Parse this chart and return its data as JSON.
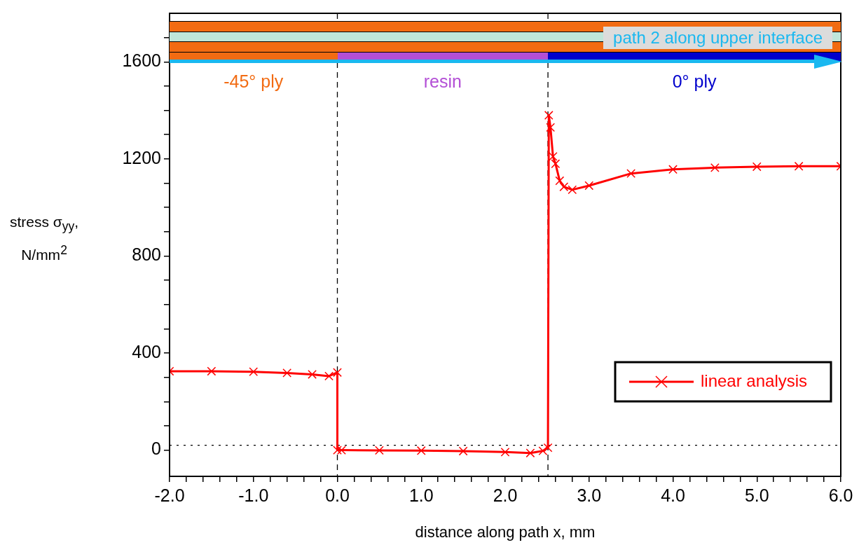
{
  "chart_data": {
    "type": "line",
    "xlabel": "distance along path x, mm",
    "ylabel": "stress σ$_{yy}$, N/mm$^{2}$",
    "xlim": [
      -2,
      6
    ],
    "ylim": [
      -108,
      1800
    ],
    "xticks": [
      {
        "value": -2,
        "label": "-2.0"
      },
      {
        "value": -1.8,
        "label": null
      },
      {
        "value": -1.6,
        "label": null
      },
      {
        "value": -1.4,
        "label": null
      },
      {
        "value": -1.2,
        "label": null
      },
      {
        "value": -1,
        "label": "-1.0"
      },
      {
        "value": -0.8,
        "label": null
      },
      {
        "value": -0.6,
        "label": null
      },
      {
        "value": -0.4,
        "label": null
      },
      {
        "value": -0.2,
        "label": null
      },
      {
        "value": 0,
        "label": "0.0"
      },
      {
        "value": 0.2,
        "label": null
      },
      {
        "value": 0.4,
        "label": null
      },
      {
        "value": 0.6,
        "label": null
      },
      {
        "value": 0.8,
        "label": null
      },
      {
        "value": 1,
        "label": "1.0"
      },
      {
        "value": 1.2,
        "label": null
      },
      {
        "value": 1.4,
        "label": null
      },
      {
        "value": 1.6,
        "label": null
      },
      {
        "value": 1.8,
        "label": null
      },
      {
        "value": 2,
        "label": "2.0"
      },
      {
        "value": 2.2,
        "label": null
      },
      {
        "value": 2.4,
        "label": null
      },
      {
        "value": 2.6,
        "label": null
      },
      {
        "value": 2.8,
        "label": null
      },
      {
        "value": 3,
        "label": "3.0"
      },
      {
        "value": 3.2,
        "label": null
      },
      {
        "value": 3.4,
        "label": null
      },
      {
        "value": 3.6,
        "label": null
      },
      {
        "value": 3.8,
        "label": null
      },
      {
        "value": 4,
        "label": "4.0"
      },
      {
        "value": 4.2,
        "label": null
      },
      {
        "value": 4.4,
        "label": null
      },
      {
        "value": 4.6,
        "label": null
      },
      {
        "value": 4.8,
        "label": null
      },
      {
        "value": 5,
        "label": "5.0"
      },
      {
        "value": 5.2,
        "label": null
      },
      {
        "value": 5.4,
        "label": null
      },
      {
        "value": 5.6,
        "label": null
      },
      {
        "value": 5.8,
        "label": null
      },
      {
        "value": 6,
        "label": "6.0"
      }
    ],
    "yticks": [
      0,
      {
        "value": 100,
        "label": null
      },
      {
        "value": 200,
        "label": null
      },
      {
        "value": 300,
        "label": null
      },
      400,
      {
        "value": 500,
        "label": null
      },
      {
        "value": 600,
        "label": null
      },
      {
        "value": 700,
        "label": null
      },
      800,
      {
        "value": 900,
        "label": null
      },
      {
        "value": 1000,
        "label": null
      },
      {
        "value": 1100,
        "label": null
      },
      1200,
      {
        "value": 1300,
        "label": null
      },
      {
        "value": 1400,
        "label": null
      },
      {
        "value": 1500,
        "label": null
      },
      1600,
      {
        "value": 1700,
        "label": null
      }
    ],
    "series": [
      {
        "name": "linear analysis",
        "color": "#ff0000",
        "x": [
          -2,
          -1.5,
          -1,
          -0.6,
          -0.3,
          -0.1,
          0,
          0,
          0.05,
          0.5,
          1,
          1.5,
          2,
          2.3,
          2.45,
          2.51,
          2.52,
          2.54,
          2.57,
          2.6,
          2.65,
          2.7,
          2.8,
          3,
          3.5,
          4,
          4.5,
          5,
          5.5,
          6
        ],
        "values": [
          325,
          325,
          323,
          318,
          312,
          305,
          320,
          0,
          0,
          -1,
          -2,
          -4,
          -8,
          -12,
          -3,
          10,
          1380,
          1330,
          1210,
          1180,
          1110,
          1085,
          1073,
          1090,
          1140,
          1157,
          1164,
          1168,
          1170,
          1170
        ]
      }
    ],
    "marker": "cross",
    "line_style": "solid",
    "legend": "bottom right",
    "grid": false,
    "ref_lines": [
      {
        "axis": "x",
        "value": 0,
        "line_style": "dashed"
      },
      {
        "axis": "x",
        "value": 2.51,
        "line_style": "dashed"
      },
      {
        "axis": "y",
        "value": 20,
        "line_style": "dotted"
      }
    ],
    "annotations": [
      "-45° ply",
      "resin",
      "0° ply",
      "path 2 along upper interface"
    ]
  }
}
